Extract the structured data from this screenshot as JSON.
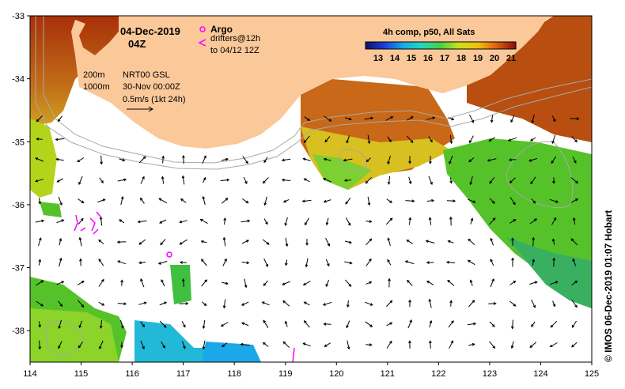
{
  "header": {
    "date": "04-Dec-2019",
    "time": "04Z"
  },
  "argo": {
    "label": "Argo",
    "drifter_line1": "drifters@12h",
    "drifter_line2": "to 04/12 12Z",
    "marker_color": "#ff00ff"
  },
  "info": {
    "depth1": "200m",
    "depth2": "1000m",
    "model": "NRT00 GSL",
    "model_time": "30-Nov 00:00Z",
    "scale": "0.5m/s (1kt 24h)"
  },
  "colorbar": {
    "title": "4h comp, p50, All Sats",
    "ticks": [
      "13",
      "14",
      "15",
      "16",
      "17",
      "18",
      "19",
      "20",
      "21"
    ]
  },
  "axes": {
    "x_ticks": [
      "114",
      "115",
      "116",
      "117",
      "118",
      "119",
      "120",
      "121",
      "122",
      "123",
      "124",
      "125"
    ],
    "y_ticks": [
      "-33",
      "-34",
      "-35",
      "-36",
      "-37",
      "-38"
    ],
    "lon_range": [
      114,
      125
    ],
    "lat_range": [
      -38.5,
      -33
    ]
  },
  "credit": "© IMOS 06-Dec-2019 01:07 Hobart",
  "colors": {
    "land": "#fbc89a",
    "sst_warm": "#b84a0a",
    "sst_green": "#56c22a",
    "sst_yellow": "#d4e01a",
    "sst_cyan": "#22b8d8"
  }
}
